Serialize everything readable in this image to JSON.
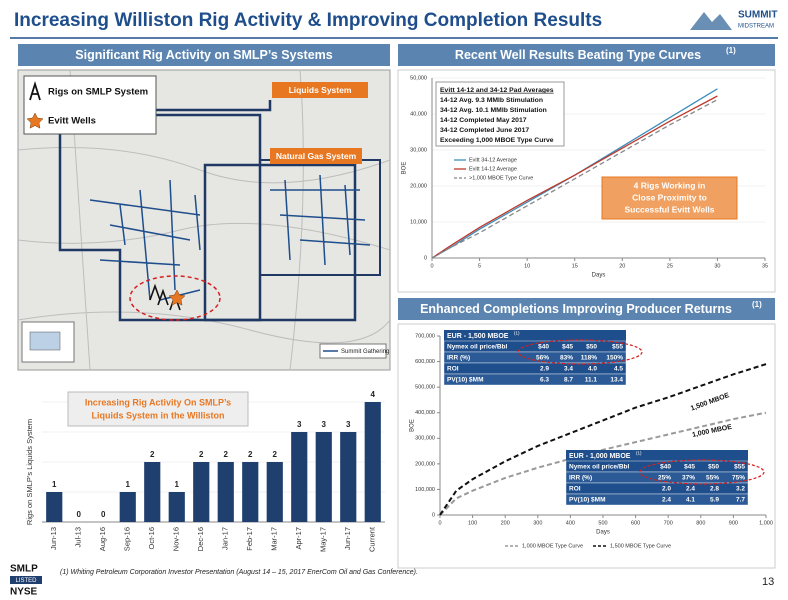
{
  "header": {
    "title": "Increasing Williston Rig Activity & Improving Completion Results",
    "logo_top": "SUMMIT",
    "logo_bottom": "MIDSTREAM"
  },
  "panels": [
    {
      "title": "Significant Rig Activity on SMLP’s Systems"
    },
    {
      "title": "Recent Well Results Beating Type Curves",
      "note": "(1)"
    },
    {
      "title": "Enhanced Completions Improving Producer Returns",
      "note": "(1)"
    }
  ],
  "map": {
    "legend": [
      "Rigs on SMLP System",
      "Evitt Wells"
    ],
    "liquids_label": "Liquids System",
    "gas_label": "Natural Gas System",
    "gathering_label": "Summit Gathering"
  },
  "chart_data": [
    {
      "type": "bar",
      "title": [
        "Increasing Rig Activity On SMLP’s",
        "Liquids System in the Williston"
      ],
      "y_label": "Rigs on SMLP’s Liquids System",
      "categories": [
        "Jun-13",
        "Jul-13",
        "Aug-16",
        "Sep-16",
        "Oct-16",
        "Nov-16",
        "Dec-16",
        "Jan-17",
        "Feb-17",
        "Mar-17",
        "Apr-17",
        "May-17",
        "Jun-17",
        "Current"
      ],
      "values": [
        1,
        0,
        0,
        1,
        2,
        1,
        2,
        2,
        2,
        2,
        3,
        3,
        3,
        4
      ],
      "color": "#1f3f6e",
      "ylim": [
        0,
        4
      ],
      "yticks": [
        0,
        1,
        2,
        3,
        4
      ],
      "grid": true
    },
    {
      "type": "line",
      "x_label": "Days",
      "y_label": "BOE",
      "annotations": [
        "Evitt 14-12 and 34-12 Pad Averages",
        "14-12 Avg. 9.3 MMlb Stimulation",
        "34-12 Avg. 10.1 MMlb Stimulation",
        "14-12 Completed May 2017",
        "34-12 Completed June 2017",
        "Exceeding 1,000 MBOE Type Curve"
      ],
      "callout": [
        "4 Rigs Working in",
        "Close Proximity to",
        "Successful Evitt Wells"
      ],
      "x": [
        0,
        2,
        5,
        10,
        15,
        20,
        25,
        30
      ],
      "series": [
        {
          "name": "Evitt 34-12 Average",
          "color": "#3c8dbc",
          "style": "solid",
          "values": [
            0,
            3000,
            8000,
            15500,
            23000,
            31000,
            39000,
            47000
          ]
        },
        {
          "name": "Evitt 14-12 Average",
          "color": "#c0392b",
          "style": "solid",
          "values": [
            0,
            3500,
            8500,
            16000,
            23000,
            30500,
            38000,
            45000
          ]
        },
        {
          "name": ">1,000 MBOE Type Curve",
          "color": "#888888",
          "style": "dashed",
          "values": [
            0,
            3000,
            7000,
            14500,
            22000,
            29500,
            37000,
            44000
          ]
        }
      ],
      "xlim": [
        0,
        35
      ],
      "xticks": [
        0,
        5,
        10,
        15,
        20,
        25,
        30,
        35
      ],
      "ylim": [
        0,
        50000
      ],
      "yticks": [
        0,
        {
          "value": 10000,
          "label": "10,000"
        },
        {
          "value": 20000,
          "label": "20,000"
        },
        {
          "value": 30000,
          "label": "30,000"
        },
        {
          "value": 40000,
          "label": "40,000"
        },
        {
          "value": 50000,
          "label": "50,000"
        }
      ],
      "grid": true,
      "legend": "inside-left"
    },
    {
      "type": "line",
      "x_label": "Days",
      "y_label": "BOE",
      "curve_labels": [
        "1,500 MBOE",
        "1,000 MBOE"
      ],
      "x": [
        0,
        50,
        100,
        200,
        300,
        400,
        500,
        600,
        700,
        800,
        900,
        1000
      ],
      "series": [
        {
          "name": "1,000 MBOE Type Curve",
          "color": "#9a9a9a",
          "style": "dashed",
          "values": [
            0,
            65000,
            95000,
            145000,
            185000,
            220000,
            255000,
            285000,
            315000,
            345000,
            375000,
            400000
          ]
        },
        {
          "name": "1,500 MBOE Type Curve",
          "color": "#111111",
          "style": "dashed",
          "values": [
            0,
            95000,
            140000,
            210000,
            270000,
            320000,
            370000,
            420000,
            460000,
            505000,
            550000,
            590000
          ]
        }
      ],
      "xlim": [
        0,
        1000
      ],
      "xticks": [
        0,
        100,
        200,
        300,
        400,
        500,
        600,
        700,
        800,
        900,
        {
          "value": 1000,
          "label": "1,000"
        }
      ],
      "ylim": [
        0,
        700000
      ],
      "yticks": [
        0,
        {
          "value": 100000,
          "label": "100,000"
        },
        {
          "value": 200000,
          "label": "200,000"
        },
        {
          "value": 300000,
          "label": "300,000"
        },
        {
          "value": 400000,
          "label": "400,000"
        },
        {
          "value": 500000,
          "label": "500,000"
        },
        {
          "value": 600000,
          "label": "600,000"
        },
        {
          "value": 700000,
          "label": "700,000"
        }
      ],
      "grid": false,
      "legend": "bottom"
    }
  ],
  "tables": [
    {
      "title": "EUR - 1,500 MBOE",
      "note": "(1)",
      "rows": [
        [
          "Nymex oil price/Bbl",
          "$40",
          "$45",
          "$50",
          "$55"
        ],
        [
          "IRR (%)",
          "56%",
          "83%",
          "118%",
          "150%"
        ],
        [
          "ROI",
          "2.9",
          "3.4",
          "4.0",
          "4.5"
        ],
        [
          "PV(10) $MM",
          "6.3",
          "8.7",
          "11.1",
          "13.4"
        ]
      ]
    },
    {
      "title": "EUR - 1,000 MBOE",
      "note": "(1)",
      "rows": [
        [
          "Nymex oil price/Bbl",
          "$40",
          "$45",
          "$50",
          "$55"
        ],
        [
          "IRR (%)",
          "25%",
          "37%",
          "55%",
          "75%"
        ],
        [
          "ROI",
          "2.0",
          "2.4",
          "2.8",
          "3.2"
        ],
        [
          "PV(10) $MM",
          "2.4",
          "4.1",
          "5.9",
          "7.7"
        ]
      ]
    }
  ],
  "footer": {
    "note": "(1) Whiting Petroleum Corporation Investor Presentation (August 14 – 15, 2017 EnerCom Oil and Gas Conference).",
    "page": "13",
    "badge": [
      "SMLP",
      "LISTED",
      "NYSE"
    ]
  }
}
